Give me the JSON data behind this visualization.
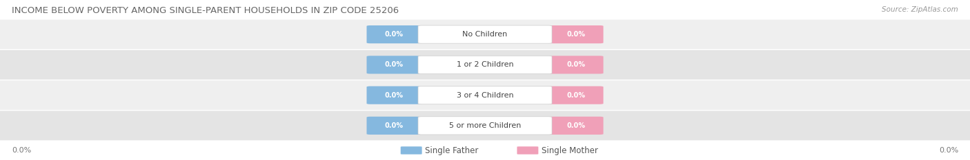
{
  "title": "INCOME BELOW POVERTY AMONG SINGLE-PARENT HOUSEHOLDS IN ZIP CODE 25206",
  "source_text": "Source: ZipAtlas.com",
  "categories": [
    "No Children",
    "1 or 2 Children",
    "3 or 4 Children",
    "5 or more Children"
  ],
  "single_father_values": [
    "0.0%",
    "0.0%",
    "0.0%",
    "0.0%"
  ],
  "single_mother_values": [
    "0.0%",
    "0.0%",
    "0.0%",
    "0.0%"
  ],
  "father_color": "#85b8df",
  "mother_color": "#f0a0b8",
  "row_bg_colors": [
    "#efefef",
    "#e4e4e4"
  ],
  "axis_label_left": "0.0%",
  "axis_label_right": "0.0%",
  "title_fontsize": 9.5,
  "source_fontsize": 7.5,
  "legend_fontsize": 8.5,
  "background_color": "#ffffff",
  "figure_width": 14.06,
  "figure_height": 2.33
}
